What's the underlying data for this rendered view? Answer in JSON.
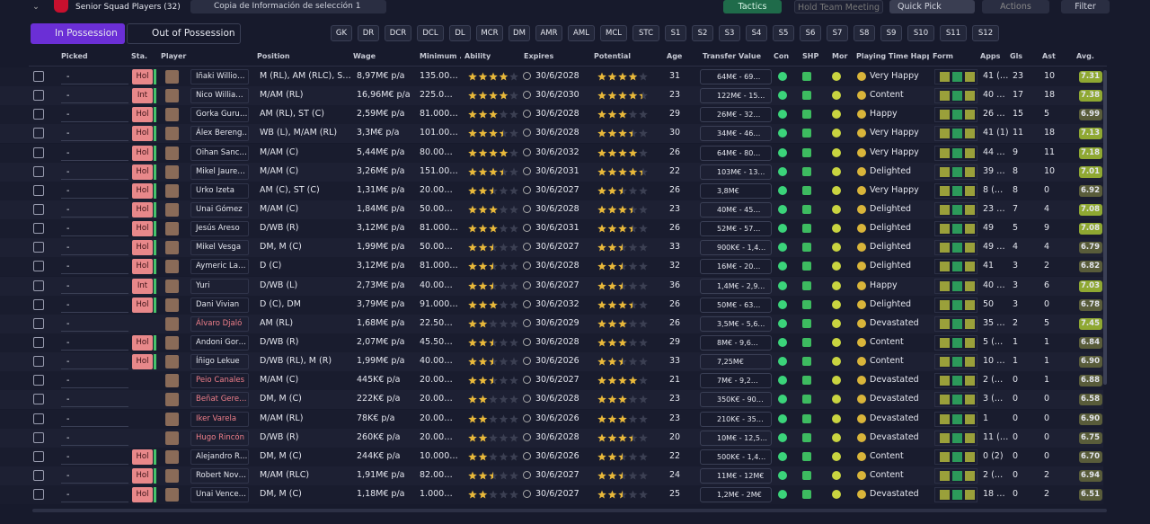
{
  "header": {
    "title": "Senior Squad Players (32)",
    "view": "Copia de Información de selección 1",
    "buttons": [
      "Tactics",
      "Hold Team Meeting",
      "Quick Pick",
      "Actions",
      "Filter"
    ]
  },
  "tabs": [
    "In Possession",
    "Out of Possession"
  ],
  "positions": [
    "GK",
    "DR",
    "DCR",
    "DCL",
    "DL",
    "MCR",
    "DM",
    "AMR",
    "AML",
    "MCL",
    "STC",
    "S1",
    "S2",
    "S3",
    "S4",
    "S5",
    "S6",
    "S7",
    "S8",
    "S9",
    "S10",
    "S11",
    "S12"
  ],
  "table": {
    "columns": [
      "Picked",
      "Sta.",
      "Player",
      "Position",
      "Wage",
      "Minimum ...",
      "Ability",
      "Expires",
      "Potential",
      "Age",
      "Transfer Value",
      "Con",
      "SHP",
      "Mor",
      "Playing Time Happin...",
      "Form",
      "Apps",
      "Gls",
      "Ast",
      "Avg."
    ],
    "rows": [
      {
        "picked": "-",
        "status": "Hol",
        "name": "Iñaki Willio…",
        "position": "M (RL), AM (RLC), S…",
        "wage": "8,97M€ p/a",
        "minimum": "135.00…",
        "ability": 4,
        "expires": "30/6/2028",
        "potential": 4,
        "age": "31",
        "transfer_value": "64M€ - 69…",
        "happiness": "Very Happy",
        "apps": "41 (…",
        "gls": "23",
        "ast": "10",
        "avg": "7.31"
      },
      {
        "picked": "-",
        "status": "Int",
        "name": "Nico Willia…",
        "position": "M/AM (RL)",
        "wage": "16,96M€ p/a",
        "minimum": "225.0…",
        "ability": 4,
        "expires": "30/6/2030",
        "potential": 4.5,
        "age": "23",
        "transfer_value": "122M€ - 15…",
        "happiness": "Content",
        "apps": "40 …",
        "gls": "17",
        "ast": "18",
        "avg": "7.38"
      },
      {
        "picked": "-",
        "status": "Hol",
        "name": "Gorka Guru…",
        "position": "AM (RL), ST (C)",
        "wage": "2,59M€ p/a",
        "minimum": "81.000…",
        "ability": 3,
        "expires": "30/6/2028",
        "potential": 3,
        "age": "29",
        "transfer_value": "26M€ - 32…",
        "happiness": "Happy",
        "apps": "26 …",
        "gls": "15",
        "ast": "5",
        "avg": "6.99"
      },
      {
        "picked": "-",
        "status": "Hol",
        "name": "Álex Bereng…",
        "position": "WB (L), M/AM (RL)",
        "wage": "3,3M€ p/a",
        "minimum": "101.00…",
        "ability": 3.5,
        "expires": "30/6/2028",
        "potential": 3.5,
        "age": "30",
        "transfer_value": "34M€ - 46…",
        "happiness": "Very Happy",
        "apps": "41 (1)",
        "gls": "11",
        "ast": "18",
        "avg": "7.13"
      },
      {
        "picked": "-",
        "status": "Hol",
        "name": "Oihan Sanc…",
        "position": "M/AM (C)",
        "wage": "5,44M€ p/a",
        "minimum": "80.00…",
        "ability": 4,
        "expires": "30/6/2032",
        "potential": 4,
        "age": "26",
        "transfer_value": "64M€ - 80…",
        "happiness": "Very Happy",
        "apps": "44 …",
        "gls": "9",
        "ast": "11",
        "avg": "7.18"
      },
      {
        "picked": "-",
        "status": "Hol",
        "name": "Mikel Jaure…",
        "position": "M/AM (C)",
        "wage": "3,26M€ p/a",
        "minimum": "151.00…",
        "ability": 3.5,
        "expires": "30/6/2031",
        "potential": 4.5,
        "age": "22",
        "transfer_value": "103M€ - 13…",
        "happiness": "Delighted",
        "apps": "39 …",
        "gls": "8",
        "ast": "10",
        "avg": "7.01"
      },
      {
        "picked": "-",
        "status": "Hol",
        "name": "Urko Izeta",
        "position": "AM (C), ST (C)",
        "wage": "1,31M€ p/a",
        "minimum": "20.00…",
        "ability": 2.5,
        "expires": "30/6/2027",
        "potential": 2.5,
        "age": "26",
        "transfer_value": "3,8M€",
        "happiness": "Very Happy",
        "apps": "8 (…",
        "gls": "8",
        "ast": "0",
        "avg": "6.92"
      },
      {
        "picked": "-",
        "status": "Hol",
        "name": "Unai Gómez",
        "position": "M/AM (C)",
        "wage": "1,84M€ p/a",
        "minimum": "50.00…",
        "ability": 3,
        "expires": "30/6/2028",
        "potential": 3.5,
        "age": "23",
        "transfer_value": "40M€ - 45…",
        "happiness": "Delighted",
        "apps": "23 …",
        "gls": "7",
        "ast": "4",
        "avg": "7.08"
      },
      {
        "picked": "-",
        "status": "Hol",
        "name": "Jesús Areso",
        "position": "D/WB (R)",
        "wage": "3,12M€ p/a",
        "minimum": "81.000…",
        "ability": 3,
        "expires": "30/6/2031",
        "potential": 3.5,
        "age": "26",
        "transfer_value": "52M€ - 57…",
        "happiness": "Delighted",
        "apps": "49",
        "gls": "5",
        "ast": "9",
        "avg": "7.08"
      },
      {
        "picked": "-",
        "status": "Hol",
        "name": "Mikel Vesga",
        "position": "DM, M (C)",
        "wage": "1,99M€ p/a",
        "minimum": "50.00…",
        "ability": 2.5,
        "expires": "30/6/2027",
        "potential": 2.5,
        "age": "33",
        "transfer_value": "900K€ - 1,4…",
        "happiness": "Delighted",
        "apps": "49 …",
        "gls": "4",
        "ast": "4",
        "avg": "6.79"
      },
      {
        "picked": "-",
        "status": "Hol",
        "name": "Aymeric La…",
        "position": "D (C)",
        "wage": "3,12M€ p/a",
        "minimum": "81.000…",
        "ability": 2.5,
        "expires": "30/6/2028",
        "potential": 2.5,
        "age": "32",
        "transfer_value": "16M€ - 20…",
        "happiness": "Delighted",
        "apps": "41",
        "gls": "3",
        "ast": "2",
        "avg": "6.82"
      },
      {
        "picked": "-",
        "status": "Int",
        "name": "Yuri",
        "position": "D/WB (L)",
        "wage": "2,73M€ p/a",
        "minimum": "40.00…",
        "ability": 2.5,
        "expires": "30/6/2027",
        "potential": 2.5,
        "age": "36",
        "transfer_value": "1,4M€ - 2,9…",
        "happiness": "Happy",
        "apps": "40 …",
        "gls": "3",
        "ast": "6",
        "avg": "7.03"
      },
      {
        "picked": "-",
        "status": "Hol",
        "name": "Dani Vivian",
        "position": "D (C), DM",
        "wage": "3,79M€ p/a",
        "minimum": "91.000…",
        "ability": 3,
        "expires": "30/6/2032",
        "potential": 3.5,
        "age": "26",
        "transfer_value": "50M€ - 63…",
        "happiness": "Delighted",
        "apps": "50",
        "gls": "3",
        "ast": "0",
        "avg": "6.78"
      },
      {
        "picked": "-",
        "status": null,
        "name": "Álvaro Djaló",
        "position": "AM (RL)",
        "wage": "1,68M€ p/a",
        "minimum": "22.50…",
        "ability": 2,
        "expires": "30/6/2029",
        "potential": 3,
        "age": "26",
        "transfer_value": "3,5M€ - 5,6…",
        "happiness": "Devastated",
        "apps": "35 …",
        "gls": "2",
        "ast": "5",
        "avg": "7.45"
      },
      {
        "picked": "-",
        "status": "Hol",
        "name": "Andoni Gor…",
        "position": "D/WB (R)",
        "wage": "2,07M€ p/a",
        "minimum": "45.50…",
        "ability": 2.5,
        "expires": "30/6/2028",
        "potential": 3,
        "age": "29",
        "transfer_value": "8M€ - 9,6…",
        "happiness": "Content",
        "apps": "5 (…",
        "gls": "1",
        "ast": "1",
        "avg": "6.84"
      },
      {
        "picked": "-",
        "status": "Hol",
        "name": "Íñigo Lekue",
        "position": "D/WB (RL), M (R)",
        "wage": "1,99M€ p/a",
        "minimum": "40.00…",
        "ability": 2.5,
        "expires": "30/6/2026",
        "potential": 2.5,
        "age": "33",
        "transfer_value": "7,25M€",
        "happiness": "Content",
        "apps": "10 …",
        "gls": "1",
        "ast": "1",
        "avg": "6.90"
      },
      {
        "picked": "-",
        "status": null,
        "name": "Peio Canales",
        "position": "M/AM (C)",
        "wage": "445K€ p/a",
        "minimum": "20.00…",
        "ability": 2.5,
        "expires": "30/6/2027",
        "potential": 4,
        "age": "21",
        "transfer_value": "7M€ - 9,2…",
        "happiness": "Devastated",
        "apps": "2 (…",
        "gls": "0",
        "ast": "1",
        "avg": "6.88"
      },
      {
        "picked": "-",
        "status": null,
        "name": "Beñat Gere…",
        "position": "DM, M (C)",
        "wage": "222K€ p/a",
        "minimum": "20.00…",
        "ability": 2,
        "expires": "30/6/2028",
        "potential": 3,
        "age": "23",
        "transfer_value": "350K€ - 90…",
        "happiness": "Devastated",
        "apps": "3 (…",
        "gls": "0",
        "ast": "0",
        "avg": "6.58"
      },
      {
        "picked": "-",
        "status": null,
        "name": "Iker Varela",
        "position": "M/AM (RL)",
        "wage": "78K€ p/a",
        "minimum": "20.00…",
        "ability": 2,
        "expires": "30/6/2026",
        "potential": 3,
        "age": "23",
        "transfer_value": "210K€ - 35…",
        "happiness": "Devastated",
        "apps": "1",
        "gls": "0",
        "ast": "0",
        "avg": "6.90"
      },
      {
        "picked": "-",
        "status": null,
        "name": "Hugo Rincón",
        "position": "D/WB (R)",
        "wage": "260K€ p/a",
        "minimum": "20.00…",
        "ability": 2,
        "expires": "30/6/2028",
        "potential": 3.5,
        "age": "20",
        "transfer_value": "10M€ - 12,5…",
        "happiness": "Devastated",
        "apps": "11 (…",
        "gls": "0",
        "ast": "0",
        "avg": "6.75"
      },
      {
        "picked": "-",
        "status": "Hol",
        "name": "Alejandro R…",
        "position": "DM, M (C)",
        "wage": "244K€ p/a",
        "minimum": "10.000…",
        "ability": 2,
        "expires": "30/6/2026",
        "potential": 2.5,
        "age": "22",
        "transfer_value": "500K€ - 1,4…",
        "happiness": "Content",
        "apps": "0 (2)",
        "gls": "0",
        "ast": "0",
        "avg": "6.70"
      },
      {
        "picked": "-",
        "status": "Hol",
        "name": "Robert Nov…",
        "position": "M/AM (RLC)",
        "wage": "1,91M€ p/a",
        "minimum": "82.00…",
        "ability": 2.5,
        "expires": "30/6/2027",
        "potential": 2.5,
        "age": "24",
        "transfer_value": "11M€ - 12M€",
        "happiness": "Content",
        "apps": "2 (…",
        "gls": "0",
        "ast": "2",
        "avg": "6.94"
      },
      {
        "picked": "-",
        "status": "Hol",
        "name": "Unai Vence…",
        "position": "DM, M (C)",
        "wage": "1,18M€ p/a",
        "minimum": "1.000…",
        "ability": 2,
        "expires": "30/6/2027",
        "potential": 2.5,
        "age": "25",
        "transfer_value": "1,2M€ - 2M€",
        "happiness": "Devastated",
        "apps": "18 …",
        "gls": "0",
        "ast": "2",
        "avg": "6.51"
      }
    ]
  }
}
